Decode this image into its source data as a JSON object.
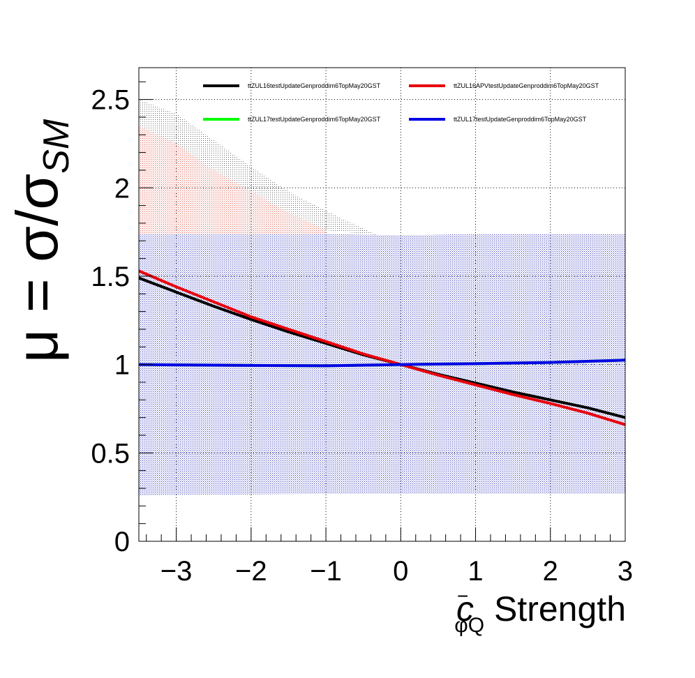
{
  "chart_data": {
    "type": "line",
    "xlabel": {
      "symbol": "c",
      "superscript": "−",
      "subscript": "φQ",
      "suffix": " Strength"
    },
    "ylabel": {
      "main": "μ = σ/σ",
      "subscript": "SM"
    },
    "xlim": [
      -3.5,
      3.0
    ],
    "ylim": [
      0,
      2.68
    ],
    "x_ticks": [
      -3,
      -2,
      -1,
      0,
      1,
      2,
      3
    ],
    "x_tick_labels": [
      "−3",
      "−2",
      "−1",
      "0",
      "1",
      "2",
      "3"
    ],
    "y_ticks": [
      0,
      0.5,
      1,
      1.5,
      2,
      2.5
    ],
    "y_tick_labels": [
      "0",
      "0.5",
      "1",
      "1.5",
      "2",
      "2.5"
    ],
    "grid": true,
    "legend_position": "top",
    "colors": {
      "black": "#000000",
      "red": "#e8000b",
      "green": "#00ff00",
      "blue": "#0000e6",
      "band_blue": "#2b2fb0",
      "band_red": "#e05a4a",
      "band_black": "#555555"
    },
    "series": [
      {
        "name": "ttZUL16testUpdateGenproddim6TopMay20GST",
        "color": "#000000",
        "x": [
          -3.5,
          -3,
          -2.5,
          -2,
          -1.5,
          -1,
          -0.5,
          0,
          0.5,
          1,
          1.5,
          2,
          2.5,
          3
        ],
        "values": [
          1.49,
          1.41,
          1.33,
          1.255,
          1.185,
          1.12,
          1.055,
          1.0,
          0.945,
          0.895,
          0.845,
          0.8,
          0.755,
          0.7
        ]
      },
      {
        "name": "ttZUL16APVtestUpdateGenproddim6TopMay20GST",
        "color": "#e8000b",
        "x": [
          -3.5,
          -3,
          -2.5,
          -2,
          -1.5,
          -1,
          -0.5,
          0,
          0.5,
          1,
          1.5,
          2,
          2.5,
          3
        ],
        "values": [
          1.53,
          1.44,
          1.355,
          1.27,
          1.2,
          1.13,
          1.06,
          1.0,
          0.94,
          0.885,
          0.83,
          0.78,
          0.725,
          0.66
        ]
      },
      {
        "name": "ttZUL17testUpdateGenproddim6TopMay20GST",
        "color": "#00ff00",
        "x": [
          -3.5,
          -3,
          -2,
          -1,
          0,
          1,
          2,
          3
        ],
        "values": [
          1.0,
          0.998,
          0.995,
          0.993,
          1.0,
          1.005,
          1.012,
          1.025
        ]
      },
      {
        "name": "ttZUL17testUpdateGenproddim6TopMay20GST",
        "color": "#0000e6",
        "x": [
          -3.5,
          -3,
          -2,
          -1,
          0,
          1,
          2,
          3
        ],
        "values": [
          1.0,
          0.998,
          0.995,
          0.993,
          1.0,
          1.005,
          1.012,
          1.025
        ]
      }
    ],
    "bands": [
      {
        "series": "ttZUL17testUpdateGenproddim6TopMay20GST",
        "color": "#2b2fb0",
        "x": [
          -3.5,
          -2,
          -1,
          0,
          1,
          2,
          3
        ],
        "lower": [
          0.26,
          0.265,
          0.27,
          0.27,
          0.27,
          0.27,
          0.27
        ],
        "upper": [
          1.74,
          1.74,
          1.74,
          1.73,
          1.74,
          1.74,
          1.74
        ]
      },
      {
        "series": "ttZUL16APVtestUpdateGenproddim6TopMay20GST",
        "color": "#e05a4a",
        "x": [
          -3.5,
          -3,
          -2.5,
          -2,
          -1.5,
          -1
        ],
        "lower": [
          1.74,
          1.74,
          1.74,
          1.74,
          1.74,
          1.74
        ],
        "upper": [
          2.35,
          2.25,
          2.1,
          1.98,
          1.86,
          1.76
        ]
      },
      {
        "series": "ttZUL16testUpdateGenproddim6TopMay20GST",
        "color": "#555555",
        "x": [
          -3.5,
          -3,
          -2.5,
          -2,
          -1.5,
          -1,
          -0.5,
          -0.3
        ],
        "lower": [
          2.35,
          2.25,
          2.1,
          1.98,
          1.86,
          1.76,
          1.74,
          1.73
        ],
        "upper": [
          2.5,
          2.42,
          2.27,
          2.12,
          1.98,
          1.87,
          1.77,
          1.73
        ]
      }
    ]
  }
}
